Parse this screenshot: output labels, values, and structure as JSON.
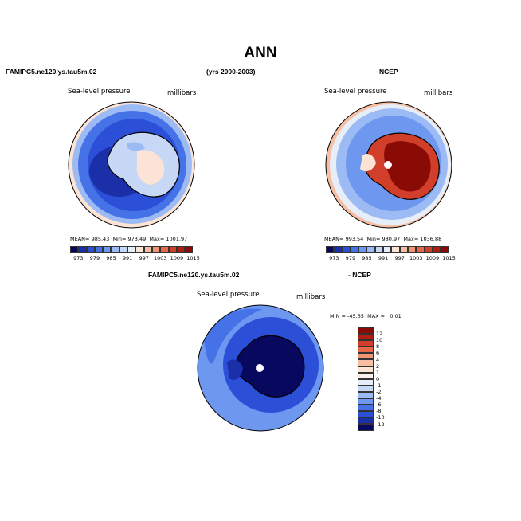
{
  "figure": {
    "title": "ANN",
    "panel_left": {
      "case_name": "FAMIPC5.ne120.ys.tau5m.02",
      "period": "(yrs 2000-2003)",
      "variable": "Sea-level pressure",
      "units": "millibars",
      "mean_label": "MEAN=",
      "mean": "985.43",
      "min_label": "Min=",
      "min": "973.49",
      "max_label": "Max=",
      "max": "1001.97"
    },
    "panel_right": {
      "case_name": "NCEP",
      "variable": "Sea-level pressure",
      "units": "millibars",
      "mean_label": "MEAN=",
      "mean": "993.54",
      "min_label": "Min=",
      "min": "980.97",
      "max_label": "Max=",
      "max": "1036.88"
    },
    "panel_diff": {
      "case_a": "FAMIPC5.ne120.ys.tau5m.02",
      "case_b": "- NCEP",
      "variable": "Sea-level pressure",
      "units": "millibars",
      "min_label": "MIN =",
      "min": "-45.65",
      "max_label": "MAX =",
      "max": "0.01"
    },
    "abs_colorbar": {
      "ticks": [
        "973",
        "979",
        "985",
        "991",
        "997",
        "1003",
        "1009",
        "1015"
      ],
      "colors": [
        "#08085f",
        "#1b2fa8",
        "#2c4fd8",
        "#4672e8",
        "#6e97f0",
        "#9cbaf3",
        "#c6d8f6",
        "#e6eefa",
        "#fbe4d6",
        "#f6bfa3",
        "#f09574",
        "#e5684a",
        "#d13e2a",
        "#b01e12",
        "#8a0a06"
      ]
    },
    "diff_colorbar": {
      "ticks": [
        "12",
        "10",
        "8",
        "6",
        "4",
        "2",
        "1",
        "0",
        "-1",
        "-2",
        "-4",
        "-6",
        "-8",
        "-10",
        "-12"
      ],
      "colors": [
        "#8a0a06",
        "#b01e12",
        "#d13e2a",
        "#e5684a",
        "#f09574",
        "#f6bfa3",
        "#fbe4d6",
        "#fdf1ea",
        "#e6eefa",
        "#c6d8f6",
        "#9cbaf3",
        "#6e97f0",
        "#4672e8",
        "#2c4fd8",
        "#1b2fa8",
        "#08085f"
      ]
    }
  }
}
